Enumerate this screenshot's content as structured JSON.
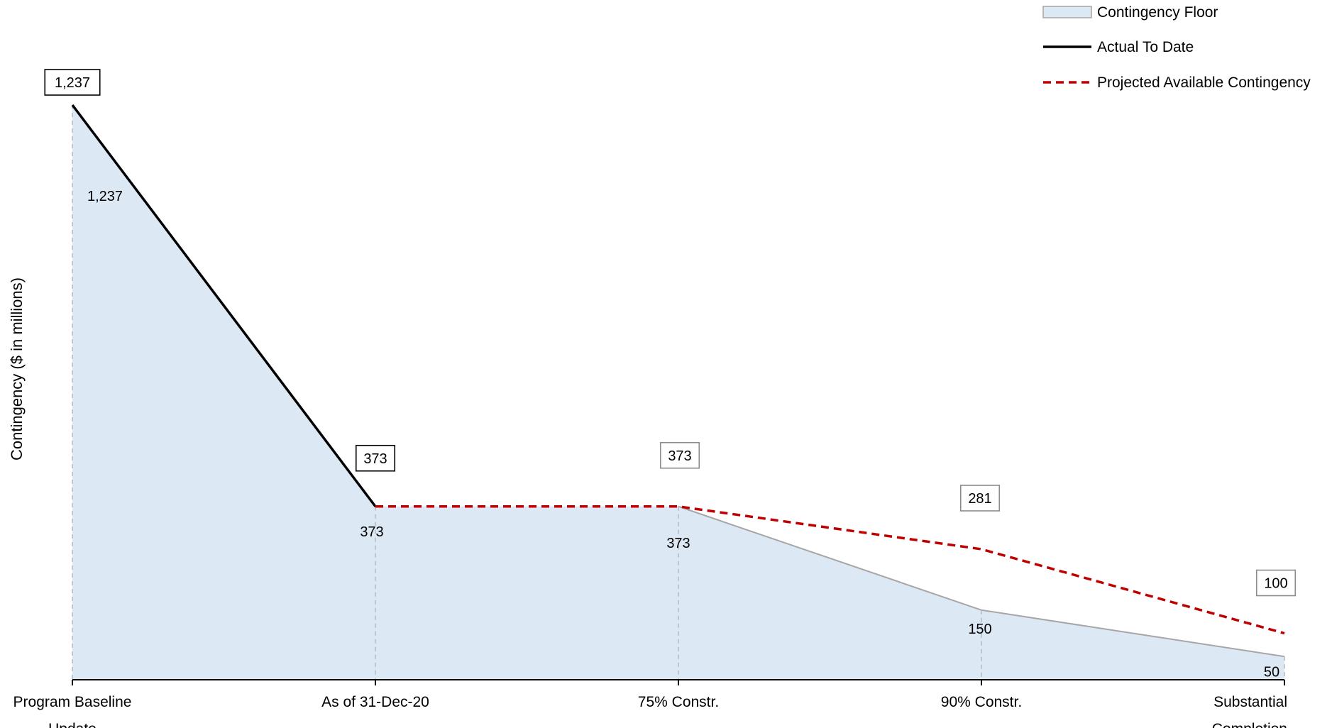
{
  "chart_data": {
    "type": "line",
    "title": "",
    "xlabel": "",
    "ylabel": "Contingency ($ in millions)",
    "categories": [
      [
        "Program Baseline",
        "Update"
      ],
      [
        "As of 31-Dec-20"
      ],
      [
        "75% Constr."
      ],
      [
        "90% Constr."
      ],
      [
        "Substantial",
        "Completion"
      ]
    ],
    "ylim": [
      0,
      1237
    ],
    "grid": false,
    "legend_position": "top-right",
    "series": [
      {
        "name": "Contingency Floor",
        "kind": "area",
        "color": "#dde8f5",
        "stroke": "#a6a6a6",
        "values": [
          1237,
          373,
          373,
          150,
          50
        ],
        "labels": [
          "1,237",
          "373",
          "373",
          "150",
          "50"
        ]
      },
      {
        "name": "Actual To Date",
        "kind": "line",
        "color": "#000000",
        "style": "solid",
        "values": [
          1237,
          373,
          null,
          null,
          null
        ],
        "labels": [
          "1,237",
          "373",
          "",
          "",
          ""
        ]
      },
      {
        "name": "Projected Available Contingency",
        "kind": "line",
        "color": "#c00000",
        "style": "dashed",
        "values": [
          null,
          373,
          373,
          281,
          100
        ],
        "labels": [
          "",
          "",
          "373",
          "281",
          "100"
        ]
      }
    ]
  }
}
